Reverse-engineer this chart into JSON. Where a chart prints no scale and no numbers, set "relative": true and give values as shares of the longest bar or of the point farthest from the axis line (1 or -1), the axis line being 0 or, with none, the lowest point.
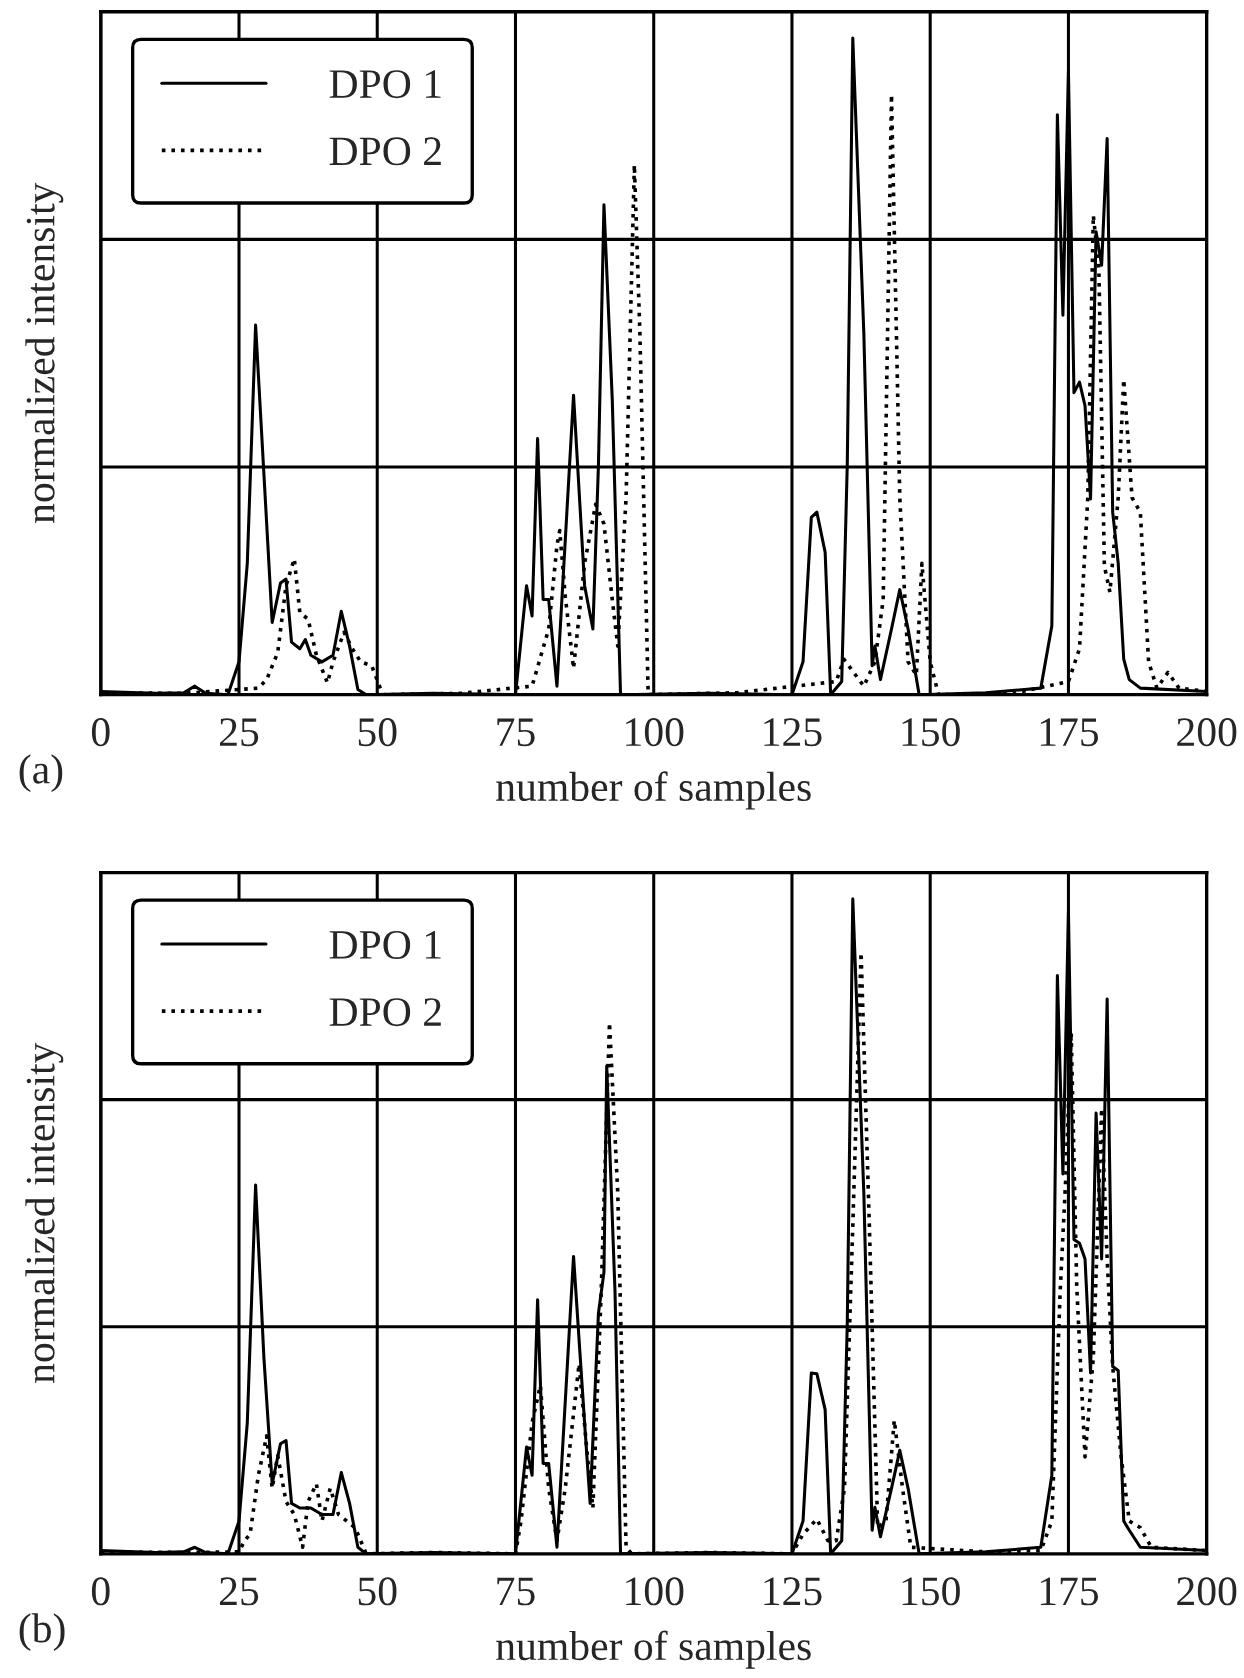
{
  "chart_data": [
    {
      "type": "line",
      "xlabel": "number of samples",
      "ylabel": "normalized intensity",
      "annotations": [
        "(a)"
      ],
      "relative": true,
      "xlim": [
        0,
        200
      ],
      "xticks": [
        0,
        25,
        50,
        75,
        100,
        125,
        150,
        175,
        200
      ],
      "grid": true,
      "legend": "top left",
      "tick_labels": "x",
      "series": [
        {
          "name": "DPO 1",
          "color": "#000000",
          "line_style": "solid",
          "x": [
            0,
            10,
            15,
            17,
            19,
            23,
            25,
            26.5,
            28,
            31,
            32.5,
            33.5,
            34.5,
            36,
            37,
            38,
            40,
            42,
            43.5,
            45,
            46.5,
            48,
            60,
            75,
            77,
            78,
            79,
            80,
            81,
            82.5,
            85.5,
            87.5,
            89,
            90,
            91,
            92.5,
            94,
            110,
            125,
            127,
            128.5,
            129.5,
            131,
            132,
            134,
            135,
            136,
            138,
            139.5,
            140,
            141,
            143,
            144.5,
            146,
            148,
            160,
            170,
            172,
            173,
            174,
            175,
            176,
            177,
            178,
            179,
            180,
            181,
            182,
            183,
            184,
            185,
            186,
            188,
            200
          ],
          "values": [
            0.005,
            0.002,
            0.003,
            0.013,
            0.002,
            0,
            0.05,
            0.2,
            0.563,
            0.11,
            0.17,
            0.176,
            0.08,
            0.07,
            0.084,
            0.06,
            0.05,
            0.06,
            0.127,
            0.074,
            0.008,
            0,
            0.002,
            0,
            0.166,
            0.12,
            0.39,
            0.145,
            0.145,
            0.013,
            0.456,
            0.166,
            0.1,
            0.349,
            0.746,
            0.45,
            0,
            0.002,
            0,
            0.05,
            0.27,
            0.278,
            0.217,
            0,
            0.02,
            0.35,
            1,
            0.55,
            0.044,
            0.074,
            0.023,
            0.1,
            0.16,
            0.1,
            0,
            0.003,
            0.01,
            0.105,
            0.883,
            0.578,
            0.949,
            0.46,
            0.476,
            0.44,
            0.298,
            0.705,
            0.654,
            0.847,
            0.278,
            0.2,
            0.054,
            0.023,
            0.01,
            0.005
          ]
        },
        {
          "name": "DPO 2",
          "color": "#000000",
          "line_style": "dotted",
          "x": [
            0,
            15,
            28.5,
            30,
            32,
            33.5,
            35,
            36,
            37.5,
            39,
            41,
            42,
            44,
            45.5,
            47,
            49,
            51,
            65,
            78,
            81,
            82.5,
            83,
            84,
            85.5,
            87.5,
            89.5,
            91,
            92.5,
            93.5,
            95,
            96.5,
            97.5,
            99,
            115,
            133,
            134.4,
            136.5,
            138,
            140,
            141.5,
            143,
            144.5,
            146,
            147.5,
            148.5,
            150,
            151.5,
            165,
            175,
            177,
            178.5,
            179.5,
            180.5,
            181.5,
            182.5,
            184,
            185,
            186.5,
            188,
            189.5,
            191,
            193,
            195,
            200
          ],
          "values": [
            0.003,
            0.002,
            0.01,
            0.023,
            0.064,
            0.166,
            0.207,
            0.125,
            0.115,
            0.06,
            0.018,
            0.05,
            0.095,
            0.07,
            0.05,
            0.044,
            0,
            0.002,
            0.013,
            0.1,
            0.227,
            0.25,
            0.15,
            0.04,
            0.2,
            0.29,
            0.26,
            0.145,
            0.074,
            0.3,
            0.807,
            0.55,
            0,
            0.003,
            0.02,
            0.054,
            0.03,
            0.013,
            0.05,
            0.145,
            0.914,
            0.3,
            0.05,
            0.03,
            0.2,
            0.05,
            0,
            0.002,
            0.02,
            0.07,
            0.3,
            0.73,
            0.65,
            0.196,
            0.156,
            0.3,
            0.48,
            0.3,
            0.278,
            0.05,
            0.01,
            0.034,
            0.01,
            0.005
          ]
        }
      ]
    },
    {
      "type": "line",
      "xlabel": "number of samples",
      "ylabel": "normalized intensity",
      "annotations": [
        "(b)"
      ],
      "relative": true,
      "xlim": [
        0,
        200
      ],
      "xticks": [
        0,
        25,
        50,
        75,
        100,
        125,
        150,
        175,
        200
      ],
      "grid": true,
      "legend": "top left",
      "tick_labels": "x",
      "series": [
        {
          "name": "DPO 1",
          "color": "#000000",
          "line_style": "solid",
          "x": [
            0,
            10,
            15,
            17,
            19,
            23,
            25,
            26.5,
            28,
            29.5,
            31,
            32.5,
            33.5,
            34.5,
            36,
            38,
            40,
            42,
            43.5,
            45,
            46.5,
            48,
            60,
            75,
            77,
            78,
            79,
            80,
            81,
            82.5,
            85.5,
            87.5,
            88.5,
            90,
            91,
            91.5,
            93,
            94,
            110,
            125,
            127,
            128.5,
            129.5,
            131,
            132,
            134,
            135,
            136,
            138,
            139.5,
            140,
            141,
            143,
            144.5,
            146,
            148,
            160,
            170,
            172,
            173,
            174,
            175,
            176,
            177,
            178,
            179,
            180,
            181,
            182,
            183,
            184,
            185,
            186,
            188,
            200
          ],
          "values": [
            0.005,
            0.002,
            0.003,
            0.01,
            0.002,
            0,
            0.05,
            0.2,
            0.563,
            0.3,
            0.107,
            0.168,
            0.173,
            0.077,
            0.07,
            0.07,
            0.06,
            0.06,
            0.124,
            0.077,
            0.01,
            0,
            0.002,
            0,
            0.163,
            0.12,
            0.388,
            0.138,
            0.138,
            0.01,
            0.454,
            0.2,
            0.077,
            0.367,
            0.43,
            0.745,
            0.4,
            0,
            0.002,
            0,
            0.05,
            0.276,
            0.275,
            0.22,
            0,
            0.02,
            0.35,
            1,
            0.55,
            0.036,
            0.071,
            0.026,
            0.1,
            0.158,
            0.1,
            0,
            0.003,
            0.01,
            0.12,
            0.883,
            0.58,
            0.98,
            0.48,
            0.474,
            0.45,
            0.276,
            0.673,
            0.45,
            0.847,
            0.286,
            0.28,
            0.05,
            0.036,
            0.01,
            0.005
          ]
        },
        {
          "name": "DPO 2",
          "color": "#000000",
          "line_style": "dotted",
          "x": [
            0,
            15,
            25,
            26,
            27,
            28.5,
            30,
            31,
            32,
            33.5,
            35,
            36.5,
            37.5,
            39,
            40,
            41.5,
            43,
            46,
            48,
            60,
            75,
            76,
            78,
            79.5,
            81,
            82.5,
            84,
            86.5,
            88,
            89,
            90.5,
            92,
            93.5,
            95,
            96,
            110,
            125,
            127,
            129.5,
            131.5,
            133,
            134.5,
            136,
            137.5,
            139,
            140.5,
            142,
            143.5,
            145,
            146.5,
            160,
            170,
            172,
            173.5,
            174.5,
            175.5,
            176.5,
            178,
            179.5,
            181,
            182,
            183,
            184.5,
            186,
            188,
            190,
            200
          ],
          "values": [
            0.003,
            0.002,
            0.003,
            0.02,
            0.03,
            0.12,
            0.18,
            0.1,
            0.15,
            0.08,
            0.06,
            0.01,
            0.08,
            0.107,
            0.05,
            0.1,
            0.06,
            0.04,
            0,
            0.002,
            0,
            0.05,
            0.2,
            0.257,
            0.1,
            0.02,
            0.1,
            0.29,
            0.15,
            0.07,
            0.4,
            0.811,
            0.55,
            0.01,
            0,
            0.002,
            0,
            0.03,
            0.053,
            0.02,
            0.02,
            0.1,
            0.5,
            0.918,
            0.5,
            0.04,
            0.05,
            0.204,
            0.1,
            0.01,
            0.003,
            0.005,
            0.05,
            0.4,
            0.571,
            0.796,
            0.408,
            0.148,
            0.3,
            0.68,
            0.45,
            0.286,
            0.15,
            0.05,
            0.04,
            0.01,
            0.005
          ]
        }
      ]
    }
  ]
}
